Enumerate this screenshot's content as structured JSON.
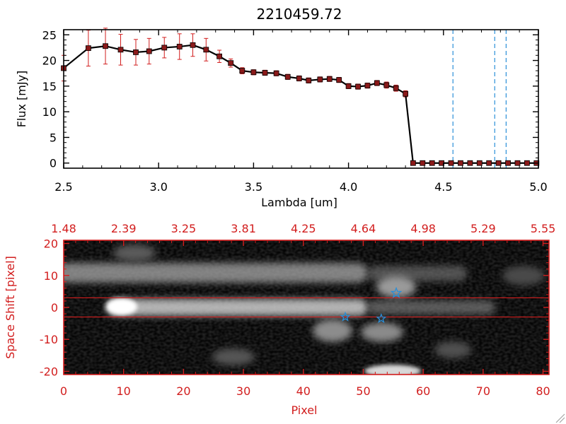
{
  "colors": {
    "red": "#d21e1e",
    "blue": "#2a8fd8",
    "black": "#000000"
  },
  "chart_data": [
    {
      "type": "line",
      "title": "2210459.72",
      "xlabel": "Lambda [um]",
      "ylabel": "Flux [mJy]",
      "xlim": [
        2.5,
        5.0
      ],
      "ylim": [
        -1,
        26
      ],
      "xticks": [
        "2.5",
        "3.0",
        "3.5",
        "4.0",
        "4.5",
        "5.0"
      ],
      "yticks": [
        "0",
        "5",
        "10",
        "15",
        "20",
        "25"
      ],
      "series": [
        {
          "x": [
            2.5,
            2.63,
            2.72,
            2.8,
            2.88,
            2.95,
            3.03,
            3.11,
            3.18,
            3.25,
            3.32,
            3.38,
            3.44,
            3.5,
            3.56,
            3.62,
            3.68,
            3.74,
            3.79,
            3.85,
            3.9,
            3.95,
            4.0,
            4.05,
            4.1,
            4.15,
            4.2,
            4.25,
            4.3,
            4.34,
            4.39,
            4.44,
            4.49,
            4.54,
            4.59,
            4.64,
            4.69,
            4.74,
            4.79,
            4.84,
            4.89,
            4.94,
            4.99
          ],
          "y": [
            18.5,
            22.4,
            22.8,
            22.1,
            21.6,
            21.8,
            22.5,
            22.7,
            23.0,
            22.1,
            20.8,
            19.5,
            18.0,
            17.7,
            17.6,
            17.5,
            16.8,
            16.5,
            16.1,
            16.3,
            16.4,
            16.2,
            15.0,
            14.9,
            15.1,
            15.6,
            15.2,
            14.6,
            13.5,
            0.0,
            0.0,
            0.0,
            0.0,
            0.0,
            0.0,
            0.0,
            0.0,
            0.0,
            0.0,
            0.0,
            0.0,
            0.0,
            0.0
          ],
          "yerr": [
            2.5,
            3.5,
            3.5,
            3.0,
            2.5,
            2.5,
            2.0,
            2.5,
            2.2,
            2.2,
            1.2,
            0.8,
            0.6,
            0.5,
            0.5,
            0.5,
            0.5,
            0.5,
            0.5,
            0.5,
            0.5,
            0.5,
            0.5,
            0.5,
            0.5,
            0.5,
            0.6,
            0.6,
            0.6,
            0.2,
            0.2,
            0.2,
            0.2,
            0.2,
            0.2,
            0.2,
            0.2,
            0.2,
            0.2,
            0.2,
            0.2,
            0.2,
            0.2
          ]
        }
      ],
      "vlines": [
        4.55,
        4.77,
        4.83
      ],
      "grid": false
    },
    {
      "type": "heatmap",
      "xlabel": "Pixel",
      "ylabel": "Space Shift [pixel]",
      "xlim": [
        0,
        81
      ],
      "ylim": [
        -21,
        21
      ],
      "xticks": [
        "0",
        "10",
        "20",
        "30",
        "40",
        "50",
        "60",
        "70",
        "80"
      ],
      "yticks": [
        "-20",
        "-10",
        "0",
        "10",
        "20"
      ],
      "top_axis_ticks": [
        "1.48",
        "2.39",
        "3.25",
        "3.81",
        "4.25",
        "4.64",
        "4.98",
        "5.29",
        "5.55"
      ],
      "hlines": [
        3,
        -3
      ],
      "stars": [
        {
          "x": 55.5,
          "y": 4.5
        },
        {
          "x": 47,
          "y": -3
        },
        {
          "x": 53,
          "y": -3.5
        }
      ]
    }
  ]
}
